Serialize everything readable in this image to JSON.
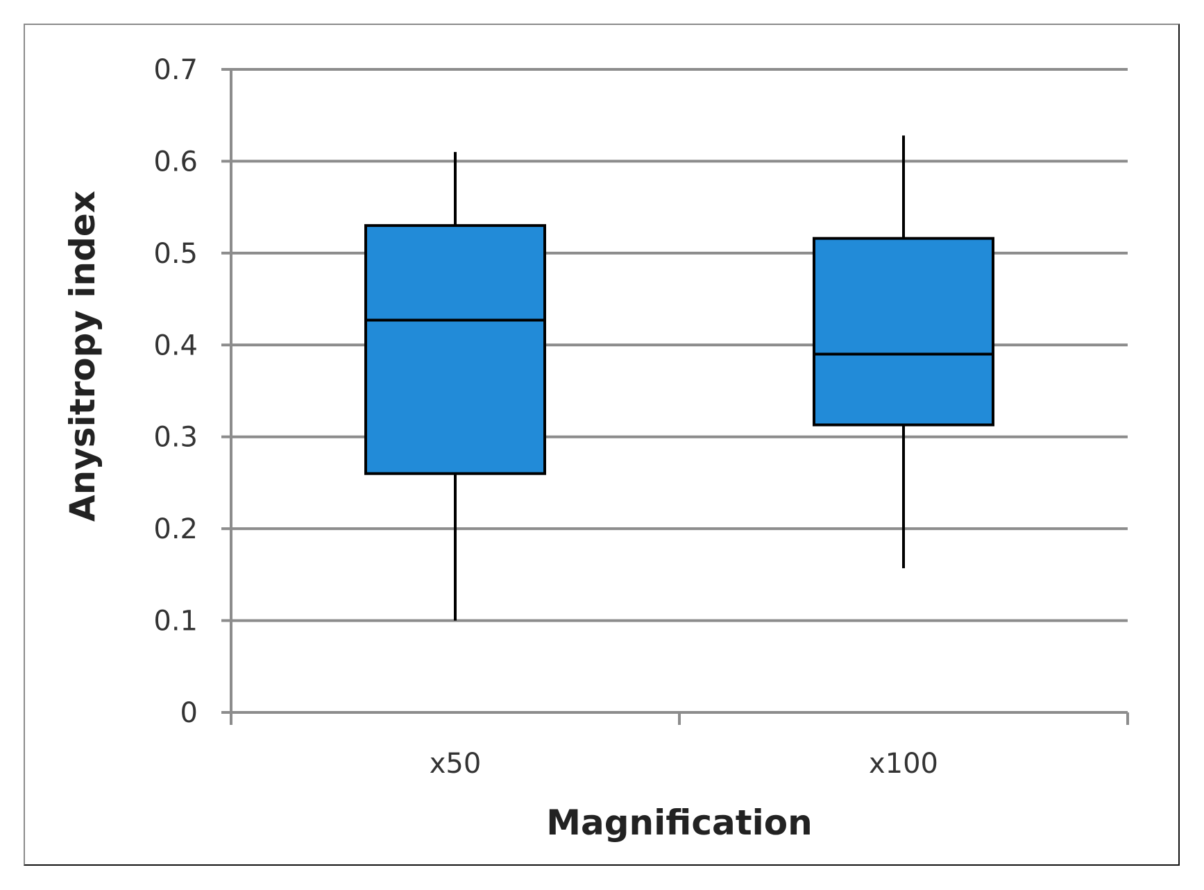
{
  "chart_data": {
    "type": "box",
    "title": "",
    "xlabel": "Magnification",
    "ylabel": "Anysitropy index",
    "ylim": [
      0,
      0.7
    ],
    "yticks": [
      "0",
      "0.1",
      "0.2",
      "0.3",
      "0.4",
      "0.5",
      "0.6",
      "0.7"
    ],
    "grid": true,
    "legend": "none",
    "box_color": "#228bd8",
    "edge_color": "#000000",
    "grid_color": "#8c8c8c",
    "categories": [
      "x50",
      "x100"
    ],
    "boxes": [
      {
        "category": "x50",
        "min": 0.1,
        "q1": 0.26,
        "median": 0.427,
        "q3": 0.53,
        "max": 0.61
      },
      {
        "category": "x100",
        "min": 0.157,
        "q1": 0.313,
        "median": 0.39,
        "q3": 0.516,
        "max": 0.628
      }
    ]
  }
}
